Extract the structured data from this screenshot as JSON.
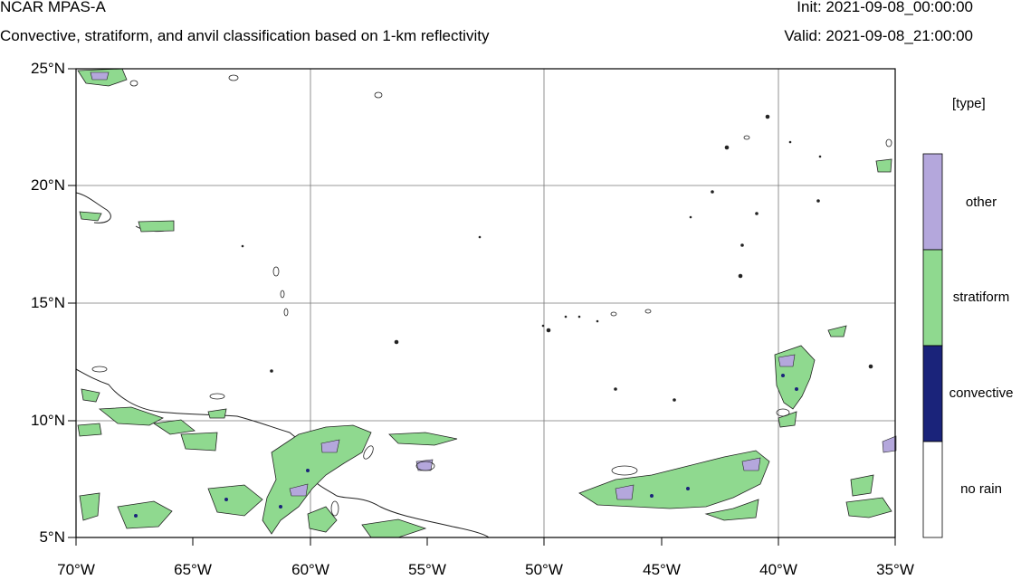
{
  "header": {
    "title": "NCAR MPAS-A",
    "subtitle": "Convective, stratiform, and anvil classification based on 1-km reflectivity",
    "init": "Init: 2021-09-08_00:00:00",
    "valid": "Valid: 2021-09-08_21:00:00"
  },
  "map": {
    "lat_range": [
      5,
      25
    ],
    "lon_range": [
      -70,
      -35
    ],
    "lat_ticks": [
      "5°N",
      "10°N",
      "15°N",
      "20°N",
      "25°N"
    ],
    "lon_ticks": [
      "70°W",
      "65°W",
      "60°W",
      "55°W",
      "50°W",
      "45°W",
      "40°W",
      "35°W"
    ],
    "grid": true
  },
  "legend": {
    "title": "[type]",
    "items": [
      {
        "label": "other",
        "color": "#b4a7dc"
      },
      {
        "label": "stratiform",
        "color": "#8fd98f"
      },
      {
        "label": "convective",
        "color": "#1a237a"
      },
      {
        "label": "no rain",
        "color": "#ffffff"
      }
    ]
  }
}
